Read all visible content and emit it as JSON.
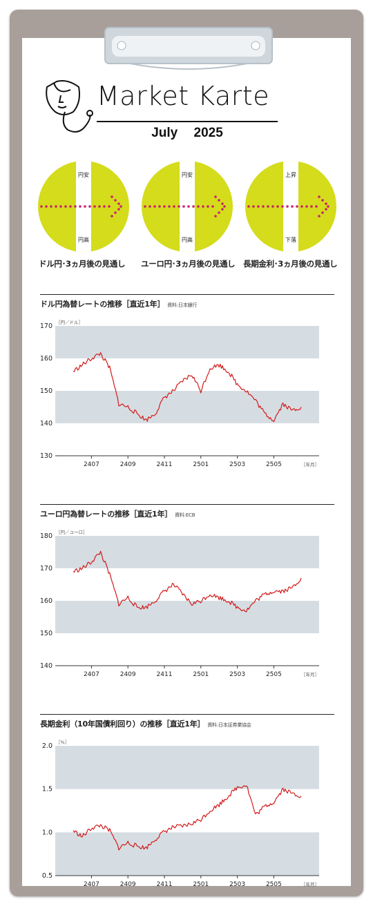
{
  "header": {
    "title": "Market Karte",
    "month": "July",
    "year": "2025"
  },
  "dials": [
    {
      "top_label": "円安",
      "bottom_label": "円高",
      "caption": "ドル円･3ヵ月後の見通し"
    },
    {
      "top_label": "円安",
      "bottom_label": "円高",
      "caption": "ユーロ円･3ヵ月後の見通し"
    },
    {
      "top_label": "上昇",
      "bottom_label": "下落",
      "caption": "長期金利･3ヵ月後の見通し"
    }
  ],
  "colors": {
    "dial_fill": "#d4dc1c",
    "arrow_dots": "#c8216c",
    "line": "#d11a1a",
    "band": "#d6dde2",
    "board": "#a89f9a"
  },
  "chart_data": [
    {
      "type": "line",
      "title": "ドル円為替レートの推移［直近1年］",
      "source": "資料:日本銀行",
      "unit_label": "［円／ドル］",
      "x_unit_label": "［年月］",
      "y_ticks": [
        "170",
        "160",
        "150",
        "140",
        "130"
      ],
      "ylim": [
        130,
        170
      ],
      "bands": [
        [
          160,
          170
        ],
        [
          140,
          150
        ]
      ],
      "x_ticks": [
        "2407",
        "2409",
        "2411",
        "2501",
        "2503",
        "2505"
      ],
      "x": [
        "2406a",
        "2406b",
        "2407a",
        "2407b",
        "2408a",
        "2408b",
        "2409a",
        "2409b",
        "2410a",
        "2410b",
        "2411a",
        "2411b",
        "2412a",
        "2412b",
        "2501a",
        "2501b",
        "2502a",
        "2502b",
        "2503a",
        "2503b",
        "2504a",
        "2504b",
        "2505a",
        "2505b",
        "2506a",
        "2506b"
      ],
      "series": [
        {
          "values": [
            156,
            158,
            160,
            161.5,
            157,
            146,
            145,
            143,
            141,
            143,
            148,
            150,
            153,
            155,
            150,
            157,
            158,
            156,
            152,
            150,
            147,
            143,
            141,
            146,
            144,
            145
          ]
        }
      ]
    },
    {
      "type": "line",
      "title": "ユーロ円為替レートの推移［直近1年］",
      "source": "資料:ECB",
      "unit_label": "［円／ユーロ］",
      "x_unit_label": "［年月］",
      "y_ticks": [
        "180",
        "170",
        "160",
        "150",
        "140"
      ],
      "ylim": [
        140,
        180
      ],
      "bands": [
        [
          170,
          180
        ],
        [
          150,
          160
        ]
      ],
      "x_ticks": [
        "2407",
        "2409",
        "2411",
        "2501",
        "2503",
        "2505"
      ],
      "x": [
        "2406a",
        "2406b",
        "2407a",
        "2407b",
        "2408a",
        "2408b",
        "2409a",
        "2409b",
        "2410a",
        "2410b",
        "2411a",
        "2411b",
        "2412a",
        "2412b",
        "2501a",
        "2501b",
        "2502a",
        "2502b",
        "2503a",
        "2503b",
        "2504a",
        "2504b",
        "2505a",
        "2505b",
        "2506a",
        "2506b"
      ],
      "series": [
        {
          "values": [
            169,
            170,
            172,
            175,
            168,
            159,
            161,
            158,
            158,
            160,
            163,
            165,
            162,
            159,
            160,
            162,
            161,
            160,
            158,
            157,
            160,
            162,
            163,
            163,
            164,
            167
          ]
        }
      ]
    },
    {
      "type": "line",
      "title": "長期金利（10年国債利回り）の推移［直近1年］",
      "source": "資料:日本証券業協会",
      "unit_label": "［%］",
      "x_unit_label": "［年月］",
      "y_ticks": [
        "2.0",
        "1.5",
        "1.0",
        "0.5"
      ],
      "ylim": [
        0.5,
        2.0
      ],
      "bands": [
        [
          1.5,
          2.0
        ],
        [
          0.5,
          1.0
        ]
      ],
      "x_ticks": [
        "2407",
        "2409",
        "2411",
        "2501",
        "2503",
        "2505"
      ],
      "x": [
        "2406a",
        "2406b",
        "2407a",
        "2407b",
        "2408a",
        "2408b",
        "2409a",
        "2409b",
        "2410a",
        "2410b",
        "2411a",
        "2411b",
        "2412a",
        "2412b",
        "2501a",
        "2501b",
        "2502a",
        "2502b",
        "2503a",
        "2503b",
        "2504a",
        "2504b",
        "2505a",
        "2505b",
        "2506a",
        "2506b"
      ],
      "series": [
        {
          "values": [
            1.02,
            0.95,
            1.05,
            1.08,
            1.02,
            0.82,
            0.88,
            0.84,
            0.82,
            0.92,
            1.01,
            1.06,
            1.07,
            1.1,
            1.15,
            1.25,
            1.32,
            1.42,
            1.52,
            1.55,
            1.2,
            1.3,
            1.35,
            1.5,
            1.45,
            1.42
          ]
        }
      ]
    }
  ]
}
